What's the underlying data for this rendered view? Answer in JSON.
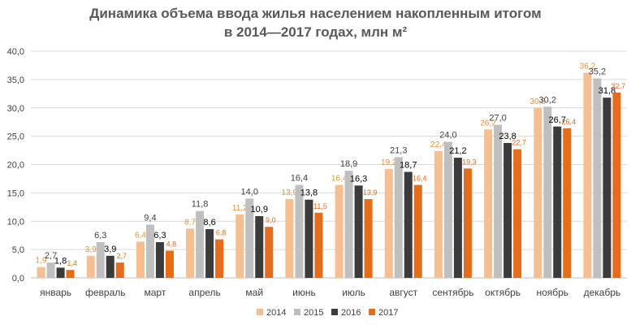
{
  "colors": {
    "s2014": "#f5bf91",
    "s2015": "#bfbfbf",
    "s2016": "#3b3b3b",
    "s2017": "#e46c1b",
    "label2014": "#e4933c",
    "label2017": "#e46c1b",
    "grid": "#d9d9d9",
    "axis_text": "#404040",
    "title": "#595959"
  },
  "chart_data": {
    "type": "bar",
    "title": "Динамика объема ввода жилья населением накопленным итогом",
    "subtitle": "в 2014—2017 годах, млн м²",
    "categories": [
      "январь",
      "февраль",
      "март",
      "апрель",
      "май",
      "июнь",
      "июль",
      "август",
      "сентябрь",
      "октябрь",
      "ноябрь",
      "декабрь"
    ],
    "series": [
      {
        "name": "2014",
        "values": [
          1.9,
          3.9,
          6.4,
          8.7,
          11.2,
          13.9,
          16.4,
          19.2,
          22.4,
          26.2,
          30.0,
          36.2
        ]
      },
      {
        "name": "2015",
        "values": [
          2.7,
          6.3,
          9.4,
          11.8,
          14.0,
          16.4,
          18.9,
          21.3,
          24.0,
          27.0,
          30.2,
          35.2
        ]
      },
      {
        "name": "2016",
        "values": [
          1.8,
          3.9,
          6.3,
          8.6,
          10.9,
          13.8,
          16.3,
          18.7,
          21.2,
          23.8,
          26.7,
          31.8
        ]
      },
      {
        "name": "2017",
        "values": [
          1.4,
          2.7,
          4.8,
          6.8,
          9.0,
          11.5,
          13.9,
          16.4,
          19.3,
          22.7,
          26.4,
          32.7
        ]
      }
    ],
    "yticks": [
      "0,0",
      "5,0",
      "10,0",
      "15,0",
      "20,0",
      "25,0",
      "30,0",
      "35,0",
      "40,0"
    ],
    "ylim": [
      0,
      40
    ],
    "grid": true,
    "legend": "bottom",
    "xlabel": "",
    "ylabel": ""
  }
}
